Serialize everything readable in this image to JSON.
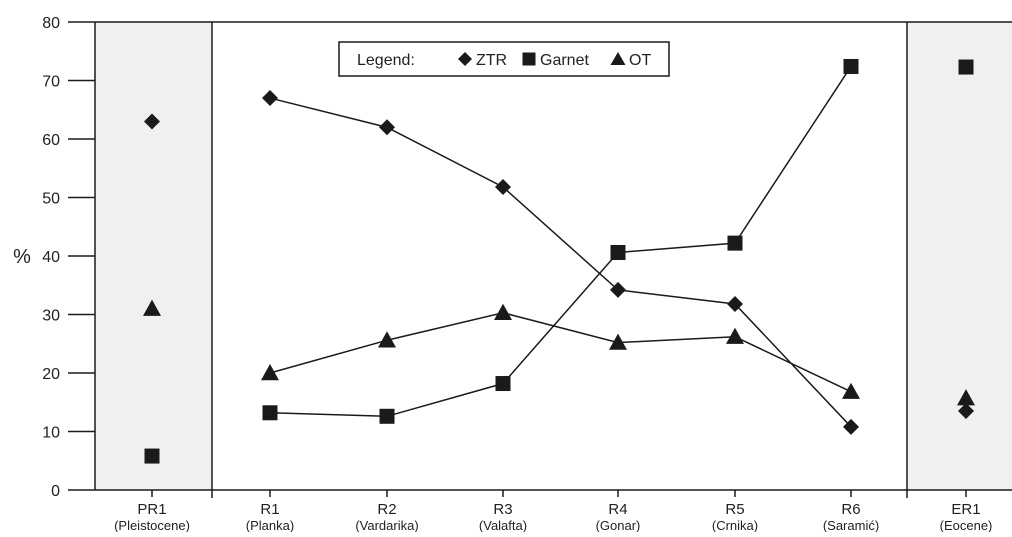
{
  "chart_data": {
    "type": "line",
    "ylabel": "%",
    "ylim": [
      0,
      80
    ],
    "yticks": [
      "0",
      "10",
      "20",
      "30",
      "40",
      "50",
      "60",
      "70",
      "80"
    ],
    "grid": false,
    "legend": {
      "title": "Legend:",
      "placement": "top-center"
    },
    "categories": [
      {
        "label": "PR1",
        "sublabel": "(Pleistocene)",
        "group": "left-shaded"
      },
      {
        "label": "R1",
        "sublabel": "(Planka)",
        "group": "main"
      },
      {
        "label": "R2",
        "sublabel": "(Vardarika)",
        "group": "main"
      },
      {
        "label": "R3",
        "sublabel": "(Valafta)",
        "group": "main"
      },
      {
        "label": "R4",
        "sublabel": "(Gonar)",
        "group": "main"
      },
      {
        "label": "R5",
        "sublabel": "(Crnika)",
        "group": "main"
      },
      {
        "label": "R6",
        "sublabel": "(Saramić)",
        "group": "main"
      },
      {
        "label": "ER1",
        "sublabel": "(Eocene)",
        "group": "right-shaded"
      }
    ],
    "series": [
      {
        "name": "ZTR",
        "marker": "diamond",
        "values": [
          63,
          67,
          62,
          51.8,
          34.2,
          31.8,
          10.8,
          13.5
        ]
      },
      {
        "name": "Garnet",
        "marker": "square",
        "values": [
          5.8,
          13.2,
          12.6,
          18.2,
          40.6,
          42.2,
          72.4,
          72.3
        ]
      },
      {
        "name": "OT",
        "marker": "triangle",
        "values": [
          31,
          20,
          25.6,
          30.3,
          25.2,
          26.2,
          16.8,
          15.7
        ]
      }
    ],
    "colors": {
      "marker": "#1a1a1a",
      "line": "#1a1a1a",
      "shade": "#f0f0f0",
      "axis": "#1a1a1a"
    }
  }
}
